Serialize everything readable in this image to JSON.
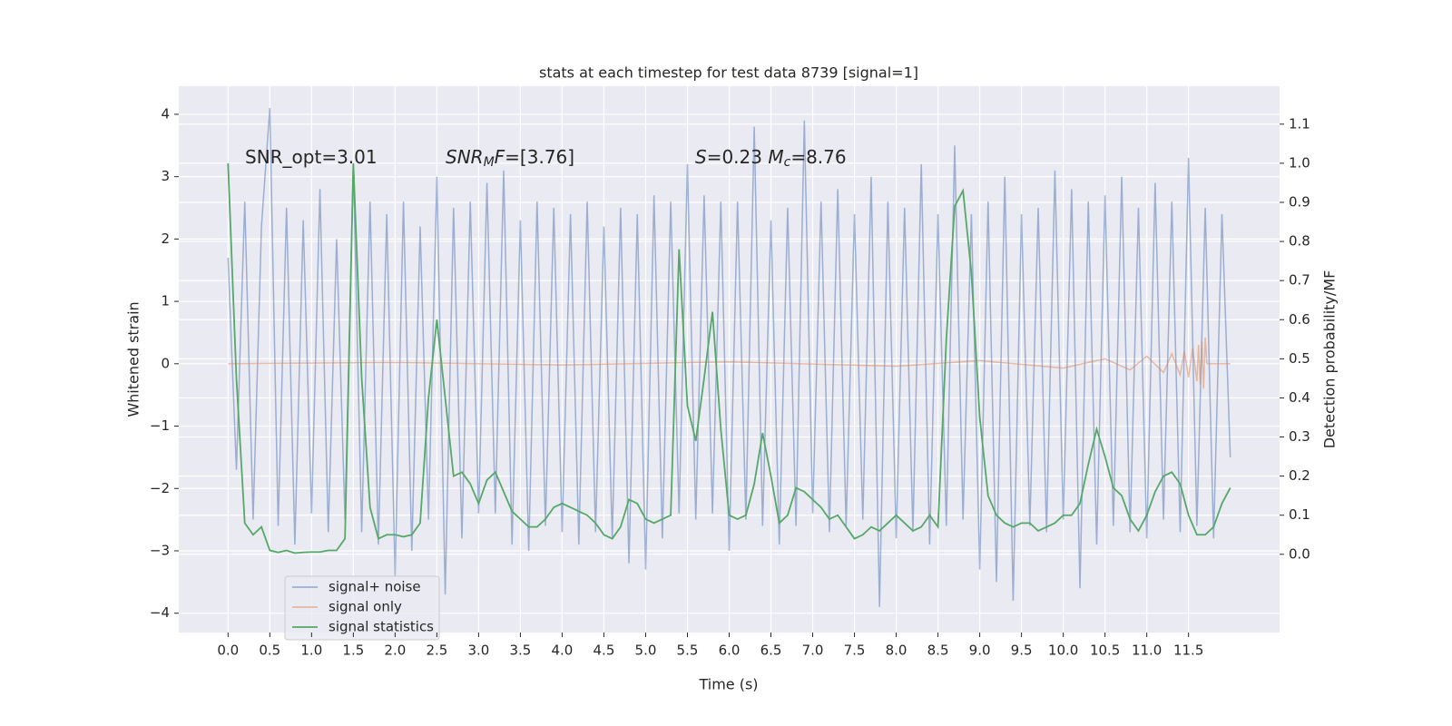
{
  "chart_data": {
    "type": "line",
    "title": "stats at each timestep for test data 8739 [signal=1]",
    "xlabel": "Time (s)",
    "ylabel": "Whitened strain",
    "y2label": "Detection probability/MF",
    "annotations": [
      {
        "parts": [
          {
            "text": "SNR_opt=3.01"
          }
        ]
      },
      {
        "parts": [
          {
            "text": "SNR",
            "italic": true
          },
          {
            "text": "M",
            "italic": true,
            "sub": true
          },
          {
            "text": "F",
            "italic": true
          },
          {
            "text": "=[3.76]"
          }
        ]
      },
      {
        "parts": [
          {
            "text": "S",
            "italic": true
          },
          {
            "text": "=0.23   "
          },
          {
            "text": "M",
            "italic": true
          },
          {
            "text": "c",
            "italic": true,
            "sub": true
          },
          {
            "text": "=8.76"
          }
        ]
      }
    ],
    "x": [
      0,
      0.1,
      0.2,
      0.3,
      0.4,
      0.5,
      0.6,
      0.7,
      0.8,
      0.9,
      1.0,
      1.1,
      1.2,
      1.3,
      1.4,
      1.5,
      1.6,
      1.7,
      1.8,
      1.9,
      2.0,
      2.1,
      2.2,
      2.3,
      2.4,
      2.5,
      2.6,
      2.7,
      2.8,
      2.9,
      3.0,
      3.1,
      3.2,
      3.3,
      3.4,
      3.5,
      3.6,
      3.7,
      3.8,
      3.9,
      4.0,
      4.1,
      4.2,
      4.3,
      4.4,
      4.5,
      4.6,
      4.7,
      4.8,
      4.9,
      5.0,
      5.1,
      5.2,
      5.3,
      5.4,
      5.5,
      5.6,
      5.7,
      5.8,
      5.9,
      6.0,
      6.1,
      6.2,
      6.3,
      6.4,
      6.5,
      6.6,
      6.7,
      6.8,
      6.9,
      7.0,
      7.1,
      7.2,
      7.3,
      7.4,
      7.5,
      7.6,
      7.7,
      7.8,
      7.9,
      8.0,
      8.1,
      8.2,
      8.3,
      8.4,
      8.5,
      8.6,
      8.7,
      8.8,
      8.9,
      9.0,
      9.1,
      9.2,
      9.3,
      9.4,
      9.5,
      9.6,
      9.7,
      9.8,
      9.9,
      10.0,
      10.1,
      10.2,
      10.3,
      10.4,
      10.5,
      10.6,
      10.7,
      10.8,
      10.9,
      11.0,
      11.1,
      11.2,
      11.3,
      11.4,
      11.5,
      11.6,
      11.7,
      11.8,
      11.9,
      12.0
    ],
    "series": [
      {
        "name": "signal+ noise",
        "color": "#4c72b0",
        "opacity": 0.5,
        "values": [
          1.7,
          -1.7,
          2.6,
          -2.5,
          2.2,
          4.1,
          -2.6,
          2.5,
          -2.9,
          2.3,
          -2.4,
          2.8,
          -2.7,
          2.0,
          -2.5,
          3.2,
          -2.7,
          2.6,
          -2.9,
          2.4,
          -3.4,
          2.6,
          -3.0,
          2.2,
          -2.5,
          3.0,
          -3.7,
          2.5,
          -2.8,
          2.6,
          -2.4,
          2.9,
          -2.4,
          3.1,
          -2.9,
          2.3,
          -3.0,
          2.6,
          -2.6,
          2.5,
          -2.7,
          2.4,
          -2.9,
          2.6,
          -2.7,
          2.2,
          -2.8,
          2.5,
          -3.2,
          2.4,
          -3.3,
          2.7,
          -2.8,
          2.6,
          -2.4,
          3.2,
          -2.5,
          2.7,
          -2.4,
          2.6,
          -3.0,
          2.6,
          -2.5,
          3.8,
          -2.6,
          2.3,
          -2.9,
          2.5,
          -2.6,
          3.9,
          -2.4,
          2.6,
          -2.7,
          2.8,
          -2.6,
          2.4,
          -2.5,
          3.0,
          -3.9,
          2.6,
          -2.8,
          2.5,
          -2.7,
          3.2,
          -2.9,
          2.4,
          -2.6,
          3.5,
          -2.5,
          2.4,
          -3.3,
          2.6,
          -3.5,
          3.0,
          -3.8,
          2.4,
          -2.6,
          2.5,
          -2.7,
          3.1,
          -2.5,
          2.8,
          -3.6,
          2.6,
          -2.9,
          2.7,
          -2.6,
          3.0,
          -2.7,
          2.5,
          -2.8,
          2.9,
          -2.5,
          2.6,
          -2.7,
          3.3,
          -2.6,
          2.5,
          -2.8,
          2.4,
          -1.5
        ]
      },
      {
        "name": "signal only",
        "color": "#dd8452",
        "opacity": 0.5,
        "x": [
          0,
          2,
          4,
          6,
          8,
          9,
          10,
          10.5,
          10.8,
          11.0,
          11.2,
          11.3,
          11.4,
          11.45,
          11.5,
          11.55,
          11.6,
          11.62,
          11.64,
          11.66,
          11.68,
          11.7,
          11.72,
          12.0
        ],
        "values": [
          0,
          0.02,
          -0.02,
          0.03,
          -0.04,
          0.05,
          -0.07,
          0.08,
          -0.1,
          0.12,
          -0.14,
          0.16,
          -0.18,
          0.2,
          -0.22,
          0.25,
          -0.28,
          0.3,
          -0.33,
          0.36,
          -0.4,
          0.42,
          0,
          0
        ]
      },
      {
        "name": "signal statistics",
        "color": "#55a868",
        "opacity": 1,
        "axis": "y2",
        "values": [
          1.0,
          0.45,
          0.08,
          0.05,
          0.07,
          0.01,
          0.005,
          0.01,
          0.003,
          0.005,
          0.006,
          0.006,
          0.01,
          0.01,
          0.04,
          1.0,
          0.45,
          0.12,
          0.04,
          0.05,
          0.05,
          0.045,
          0.05,
          0.08,
          0.4,
          0.6,
          0.4,
          0.2,
          0.21,
          0.18,
          0.13,
          0.19,
          0.21,
          0.16,
          0.11,
          0.09,
          0.07,
          0.07,
          0.09,
          0.12,
          0.13,
          0.12,
          0.11,
          0.1,
          0.08,
          0.05,
          0.04,
          0.07,
          0.14,
          0.13,
          0.09,
          0.08,
          0.09,
          0.1,
          0.78,
          0.38,
          0.29,
          0.45,
          0.62,
          0.32,
          0.1,
          0.09,
          0.1,
          0.18,
          0.31,
          0.2,
          0.08,
          0.1,
          0.17,
          0.16,
          0.14,
          0.12,
          0.09,
          0.1,
          0.07,
          0.04,
          0.05,
          0.07,
          0.06,
          0.08,
          0.1,
          0.08,
          0.06,
          0.07,
          0.1,
          0.07,
          0.55,
          0.89,
          0.93,
          0.72,
          0.35,
          0.15,
          0.1,
          0.08,
          0.07,
          0.08,
          0.08,
          0.06,
          0.07,
          0.08,
          0.1,
          0.1,
          0.13,
          0.23,
          0.32,
          0.25,
          0.17,
          0.15,
          0.09,
          0.06,
          0.1,
          0.16,
          0.2,
          0.21,
          0.18,
          0.1,
          0.05,
          0.05,
          0.07,
          0.13,
          0.17
        ]
      }
    ],
    "xlim": [
      -0.59,
      12.59
    ],
    "ylim": [
      -4.31,
      4.45
    ],
    "y2lim": [
      -0.2,
      1.197
    ],
    "xticks": [
      {
        "value": 0,
        "label": "0.0"
      },
      0.5,
      {
        "value": 1,
        "label": "1.0"
      },
      1.5,
      {
        "value": 2,
        "label": "2.0"
      },
      2.5,
      {
        "value": 3,
        "label": "3.0"
      },
      3.5,
      {
        "value": 4,
        "label": "4.0"
      },
      4.5,
      {
        "value": 5,
        "label": "5.0"
      },
      5.5,
      {
        "value": 6,
        "label": "6.0"
      },
      6.5,
      {
        "value": 7,
        "label": "7.0"
      },
      7.5,
      {
        "value": 8,
        "label": "8.0"
      },
      8.5,
      {
        "value": 9,
        "label": "9.0"
      },
      9.5,
      {
        "value": 10,
        "label": "10.0"
      },
      10.5,
      {
        "value": 11,
        "label": "11.0"
      },
      11.5
    ],
    "yticks": [
      {
        "value": -4,
        "label": "−4"
      },
      {
        "value": -3,
        "label": "−3"
      },
      {
        "value": -2,
        "label": "−2"
      },
      {
        "value": -1,
        "label": "−1"
      },
      0,
      1,
      2,
      3,
      4
    ],
    "y2ticks": [
      {
        "value": 0,
        "label": "0.0"
      },
      0.1,
      0.2,
      0.3,
      0.4,
      0.5,
      0.6,
      0.7,
      0.8,
      0.9,
      {
        "value": 1,
        "label": "1.0"
      },
      1.1
    ],
    "grid": true,
    "legend": "lower left"
  }
}
